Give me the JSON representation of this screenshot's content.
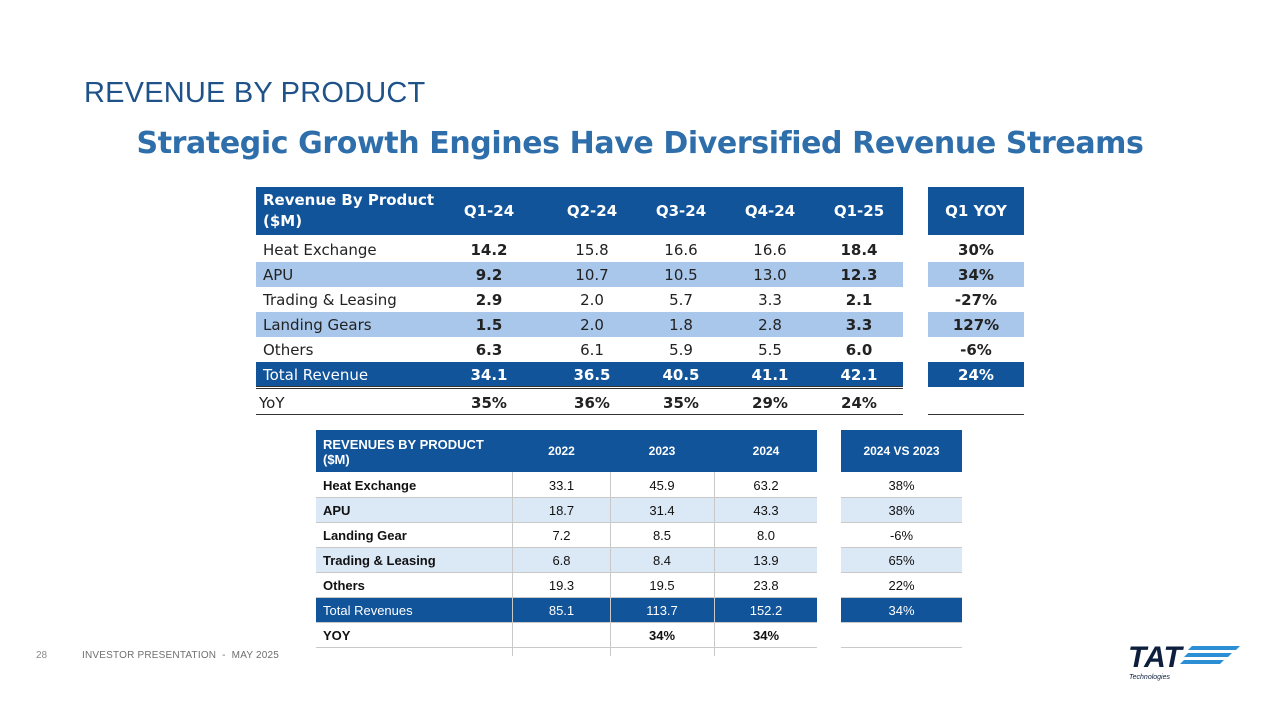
{
  "title": "REVENUE BY PRODUCT",
  "subtitle": "Strategic Growth Engines Have Diversified Revenue Streams",
  "quarterly_table": {
    "header_label": "Revenue By Product\n($M)",
    "columns": [
      "Q1-24",
      "Q2-24",
      "Q3-24",
      "Q4-24",
      "Q1-25"
    ],
    "yoy_header": "Q1 YOY",
    "rows": [
      {
        "label": "Heat Exchange",
        "values": [
          "14.2",
          "15.8",
          "16.6",
          "16.6",
          "18.4"
        ],
        "yoy": "30%"
      },
      {
        "label": "APU",
        "values": [
          "9.2",
          "10.7",
          "10.5",
          "13.0",
          "12.3"
        ],
        "yoy": "34%"
      },
      {
        "label": "Trading & Leasing",
        "values": [
          "2.9",
          "2.0",
          "5.7",
          "3.3",
          "2.1"
        ],
        "yoy": "-27%"
      },
      {
        "label": "Landing Gears",
        "values": [
          "1.5",
          "2.0",
          "1.8",
          "2.8",
          "3.3"
        ],
        "yoy": "127%"
      },
      {
        "label": "Others",
        "values": [
          "6.3",
          "6.1",
          "5.9",
          "5.5",
          "6.0"
        ],
        "yoy": "-6%"
      },
      {
        "label": "Total Revenue",
        "values": [
          "34.1",
          "36.5",
          "40.5",
          "41.1",
          "42.1"
        ],
        "yoy": "24%"
      },
      {
        "label": "YoY",
        "values": [
          "35%",
          "36%",
          "35%",
          "29%",
          "24%"
        ],
        "yoy": ""
      }
    ]
  },
  "annual_table": {
    "header_label": "REVENUES BY PRODUCT\n($M)",
    "columns": [
      "2022",
      "2023",
      "2024"
    ],
    "yoy_header": "2024 VS 2023",
    "rows": [
      {
        "label": "Heat Exchange",
        "values": [
          "33.1",
          "45.9",
          "63.2"
        ],
        "yoy": "38%"
      },
      {
        "label": "APU",
        "values": [
          "18.7",
          "31.4",
          "43.3"
        ],
        "yoy": "38%"
      },
      {
        "label": "Landing Gear",
        "values": [
          "7.2",
          "8.5",
          "8.0"
        ],
        "yoy": "-6%"
      },
      {
        "label": "Trading & Leasing",
        "values": [
          "6.8",
          "8.4",
          "13.9"
        ],
        "yoy": "65%"
      },
      {
        "label": "Others",
        "values": [
          "19.3",
          "19.5",
          "23.8"
        ],
        "yoy": "22%"
      },
      {
        "label": "Total Revenues",
        "values": [
          "85.1",
          "113.7",
          "152.2"
        ],
        "yoy": "34%"
      },
      {
        "label": "YOY",
        "values": [
          "",
          "34%",
          "34%"
        ],
        "yoy": ""
      }
    ]
  },
  "footer": {
    "page_number": "28",
    "text": "INVESTOR PRESENTATION  -  MAY 2025"
  },
  "logo": {
    "text": "TAT",
    "subtext": "Technologies"
  },
  "colors": {
    "title": "#1f5289",
    "subtitle": "#2e6eaa",
    "header_bg": "#11549a",
    "alt_row": "#a9c7ea",
    "annual_alt_row": "#dbe8f6"
  }
}
